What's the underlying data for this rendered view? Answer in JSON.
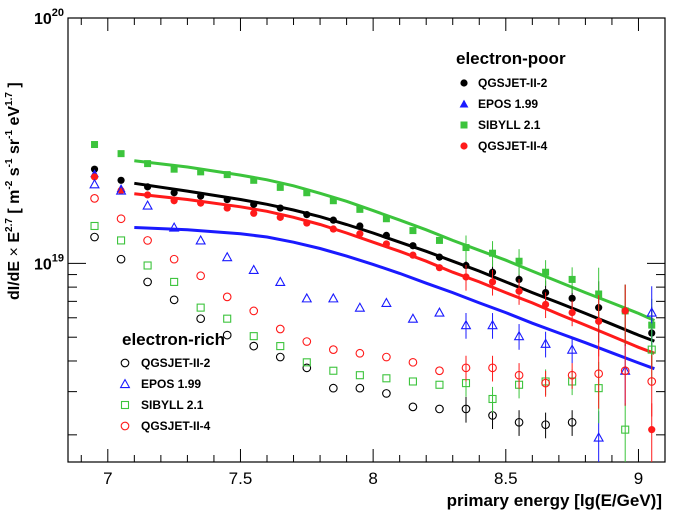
{
  "chart_data": {
    "type": "scatter",
    "xlabel": "primary energy [lg(E/GeV)]",
    "ylabel": "dI/dE × E^2.7 [ m^-2 s^-1 sr^-1 eV^1.7 ]",
    "xlim": [
      6.85,
      9.1
    ],
    "ylim": [
      1.55e+18,
      1e+20
    ],
    "yscale": "log",
    "grid": false,
    "x_ticks": [
      7,
      7.5,
      8,
      8.5,
      9
    ],
    "x_tick_labels": [
      "7",
      "7.5",
      "8",
      "8.5",
      "9"
    ],
    "y_ticks": [
      1e+19,
      1e+20
    ],
    "colors": {
      "QGSJET-II-2": "#000000",
      "EPOS 1.99": "#1a1aff",
      "SIBYLL 2.1": "#3cc43c",
      "QGSJET-II-4": "#ff1a1a"
    },
    "legends": [
      {
        "title": "electron-poor",
        "placement": "top-right",
        "marker": "filled",
        "entries": [
          "QGSJET-II-2",
          "EPOS 1.99",
          "SIBYLL 2.1",
          "QGSJET-II-4"
        ]
      },
      {
        "title": "electron-rich",
        "placement": "bottom-left",
        "marker": "open",
        "entries": [
          "QGSJET-II-2",
          "EPOS 1.99",
          "SIBYLL 2.1",
          "QGSJET-II-4"
        ]
      }
    ],
    "series": [
      {
        "name": "QGSJET-II-2",
        "group": "electron-poor",
        "marker": "circle-filled",
        "color": "#000000",
        "points": [
          [
            6.95,
            2.42e+19
          ],
          [
            7.05,
            2.18e+19
          ],
          [
            7.15,
            2.05e+19
          ],
          [
            7.25,
            1.94e+19
          ],
          [
            7.35,
            1.88e+19
          ],
          [
            7.45,
            1.82e+19
          ],
          [
            7.55,
            1.74e+19
          ],
          [
            7.65,
            1.68e+19
          ],
          [
            7.75,
            1.58e+19
          ],
          [
            7.85,
            1.5e+19
          ],
          [
            7.95,
            1.42e+19
          ],
          [
            8.05,
            1.3e+19
          ],
          [
            8.15,
            1.18e+19
          ],
          [
            8.25,
            1.06e+19
          ],
          [
            8.35,
            9.8e+18
          ],
          [
            8.45,
            9.2e+18
          ],
          [
            8.55,
            8.6e+18
          ],
          [
            8.65,
            7.6e+18
          ],
          [
            8.75,
            7.2e+18
          ],
          [
            8.85,
            6.6e+18
          ],
          [
            8.95,
            6.4e+18
          ],
          [
            9.05,
            5.2e+18
          ]
        ]
      },
      {
        "name": "EPOS 1.99",
        "group": "electron-poor",
        "marker": "triangle-filled",
        "color": "#1a1aff",
        "points": [
          [
            6.95,
            2.32e+19
          ],
          [
            7.05,
            2.02e+19
          ]
        ]
      },
      {
        "name": "SIBYLL 2.1",
        "group": "electron-poor",
        "marker": "square-filled",
        "color": "#3cc43c",
        "points": [
          [
            6.95,
            3.05e+19
          ],
          [
            7.05,
            2.8e+19
          ],
          [
            7.15,
            2.55e+19
          ],
          [
            7.25,
            2.42e+19
          ],
          [
            7.35,
            2.36e+19
          ],
          [
            7.45,
            2.3e+19
          ],
          [
            7.55,
            2.18e+19
          ],
          [
            7.65,
            2.04e+19
          ],
          [
            7.75,
            1.94e+19
          ],
          [
            7.85,
            1.8e+19
          ],
          [
            7.95,
            1.66e+19
          ],
          [
            8.05,
            1.52e+19
          ],
          [
            8.15,
            1.36e+19
          ],
          [
            8.25,
            1.24e+19
          ],
          [
            8.35,
            1.16e+19
          ],
          [
            8.45,
            1.1e+19
          ],
          [
            8.55,
            1.02e+19
          ],
          [
            8.65,
            9.2e+18
          ],
          [
            8.75,
            8.6e+18
          ],
          [
            8.85,
            7.5e+18
          ],
          [
            8.95,
            6.4e+18
          ],
          [
            9.05,
            5.6e+18
          ]
        ]
      },
      {
        "name": "QGSJET-II-4",
        "group": "electron-poor",
        "marker": "circle-filled",
        "color": "#ff1a1a",
        "points": [
          [
            6.95,
            2.25e+19
          ],
          [
            7.05,
            1.98e+19
          ],
          [
            7.15,
            1.9e+19
          ],
          [
            7.25,
            1.8e+19
          ],
          [
            7.35,
            1.76e+19
          ],
          [
            7.45,
            1.68e+19
          ],
          [
            7.55,
            1.6e+19
          ],
          [
            7.65,
            1.54e+19
          ],
          [
            7.75,
            1.46e+19
          ],
          [
            7.85,
            1.38e+19
          ],
          [
            7.95,
            1.32e+19
          ],
          [
            8.05,
            1.2e+19
          ],
          [
            8.15,
            1.08e+19
          ],
          [
            8.25,
            9.6e+18
          ],
          [
            8.35,
            8.8e+18
          ],
          [
            8.45,
            8.4e+18
          ],
          [
            8.55,
            7.7e+18
          ],
          [
            8.65,
            6.8e+18
          ],
          [
            8.75,
            6.3e+18
          ],
          [
            8.85,
            5.8e+18
          ],
          [
            8.95,
            6.4e+18
          ],
          [
            9.05,
            2.1e+18
          ]
        ]
      },
      {
        "name": "QGSJET-II-2",
        "group": "electron-rich",
        "marker": "circle-open",
        "color": "#000000",
        "points": [
          [
            6.95,
            1.28e+19
          ],
          [
            7.05,
            1.04e+19
          ],
          [
            7.15,
            8.4e+18
          ],
          [
            7.25,
            7.1e+18
          ],
          [
            7.35,
            5.95e+18
          ],
          [
            7.45,
            5.1e+18
          ],
          [
            7.55,
            4.6e+18
          ],
          [
            7.65,
            4.15e+18
          ],
          [
            7.75,
            3.75e+18
          ],
          [
            7.85,
            3.1e+18
          ],
          [
            7.95,
            3.1e+18
          ],
          [
            8.05,
            2.95e+18
          ],
          [
            8.15,
            2.6e+18
          ],
          [
            8.25,
            2.55e+18
          ],
          [
            8.35,
            2.55e+18
          ],
          [
            8.45,
            2.4e+18
          ],
          [
            8.55,
            2.25e+18
          ],
          [
            8.65,
            2.2e+18
          ],
          [
            8.75,
            2.25e+18
          ]
        ]
      },
      {
        "name": "EPOS 1.99",
        "group": "electron-rich",
        "marker": "triangle-open",
        "color": "#1a1aff",
        "points": [
          [
            6.95,
            2.1e+19
          ],
          [
            7.05,
            1.98e+19
          ],
          [
            7.15,
            1.72e+19
          ],
          [
            7.25,
            1.4e+19
          ],
          [
            7.35,
            1.24e+19
          ],
          [
            7.45,
            1.06e+19
          ],
          [
            7.55,
            9.4e+18
          ],
          [
            7.65,
            8.4e+18
          ],
          [
            7.75,
            7.2e+18
          ],
          [
            7.85,
            7.2e+18
          ],
          [
            7.95,
            6.6e+18
          ],
          [
            8.05,
            6.9e+18
          ],
          [
            8.15,
            5.95e+18
          ],
          [
            8.25,
            6.3e+18
          ],
          [
            8.35,
            5.6e+18
          ],
          [
            8.45,
            5.6e+18
          ],
          [
            8.55,
            5.05e+18
          ],
          [
            8.65,
            4.7e+18
          ],
          [
            8.75,
            4.45e+18
          ],
          [
            8.85,
            1.95e+18
          ],
          [
            8.95,
            3.65e+18
          ],
          [
            9.05,
            6.3e+18
          ]
        ]
      },
      {
        "name": "SIBYLL 2.1",
        "group": "electron-rich",
        "marker": "square-open",
        "color": "#3cc43c",
        "points": [
          [
            6.95,
            1.42e+19
          ],
          [
            7.05,
            1.24e+19
          ],
          [
            7.15,
            9.8e+18
          ],
          [
            7.25,
            8.4e+18
          ],
          [
            7.35,
            6.6e+18
          ],
          [
            7.45,
            5.95e+18
          ],
          [
            7.55,
            5.05e+18
          ],
          [
            7.65,
            4.6e+18
          ],
          [
            7.75,
            3.95e+18
          ],
          [
            7.85,
            3.65e+18
          ],
          [
            7.95,
            3.5e+18
          ],
          [
            8.05,
            3.4e+18
          ],
          [
            8.15,
            3.3e+18
          ],
          [
            8.25,
            3.2e+18
          ],
          [
            8.35,
            3.25e+18
          ],
          [
            8.45,
            2.8e+18
          ],
          [
            8.55,
            3.2e+18
          ],
          [
            8.65,
            3.3e+18
          ],
          [
            8.75,
            3.3e+18
          ],
          [
            8.85,
            3.1e+18
          ],
          [
            8.95,
            2.1e+18
          ],
          [
            9.05,
            4.45e+18
          ]
        ]
      },
      {
        "name": "QGSJET-II-4",
        "group": "electron-rich",
        "marker": "circle-open",
        "color": "#ff1a1a",
        "points": [
          [
            6.95,
            1.84e+19
          ],
          [
            7.05,
            1.52e+19
          ],
          [
            7.15,
            1.24e+19
          ],
          [
            7.25,
            1.04e+19
          ],
          [
            7.35,
            8.9e+18
          ],
          [
            7.45,
            7.3e+18
          ],
          [
            7.55,
            6.4e+18
          ],
          [
            7.65,
            5.4e+18
          ],
          [
            7.75,
            4.8e+18
          ],
          [
            7.85,
            4.45e+18
          ],
          [
            7.95,
            4.3e+18
          ],
          [
            8.05,
            4.15e+18
          ],
          [
            8.15,
            3.95e+18
          ],
          [
            8.25,
            3.65e+18
          ],
          [
            8.35,
            3.75e+18
          ],
          [
            8.45,
            3.75e+18
          ],
          [
            8.55,
            3.5e+18
          ],
          [
            8.65,
            3.25e+18
          ],
          [
            8.75,
            3.5e+18
          ],
          [
            8.85,
            3.55e+18
          ],
          [
            8.95,
            3.65e+18
          ],
          [
            9.05,
            3.3e+18
          ]
        ]
      }
    ],
    "fits": [
      {
        "name": "QGSJET-II-2",
        "color": "#000000",
        "x": [
          7.1,
          7.3,
          7.5,
          7.6,
          7.7,
          7.8,
          7.9,
          8.0,
          8.1,
          8.2,
          8.3,
          8.4,
          8.5,
          8.6,
          8.7,
          8.8,
          8.9,
          9.0,
          9.06
        ],
        "y": [
          2.12e+19,
          1.97e+19,
          1.82e+19,
          1.74e+19,
          1.65e+19,
          1.55e+19,
          1.44e+19,
          1.33e+19,
          1.22e+19,
          1.12e+19,
          1.02e+19,
          9.3e+18,
          8.4e+18,
          7.6e+18,
          6.9e+18,
          6.25e+18,
          5.65e+18,
          5.1e+18,
          4.82e+18
        ]
      },
      {
        "name": "EPOS 1.99",
        "color": "#1a1aff",
        "x": [
          7.1,
          7.3,
          7.5,
          7.6,
          7.7,
          7.8,
          7.9,
          8.0,
          8.1,
          8.2,
          8.3,
          8.4,
          8.5,
          8.6,
          8.7,
          8.8,
          8.9,
          9.0,
          9.06
        ],
        "y": [
          1.4e+19,
          1.37e+19,
          1.32e+19,
          1.28e+19,
          1.22e+19,
          1.15e+19,
          1.07e+19,
          9.9e+18,
          9.1e+18,
          8.3e+18,
          7.6e+18,
          6.9e+18,
          6.3e+18,
          5.7e+18,
          5.2e+18,
          4.75e+18,
          4.32e+18,
          3.93e+18,
          3.72e+18
        ]
      },
      {
        "name": "SIBYLL 2.1",
        "color": "#3cc43c",
        "x": [
          7.1,
          7.3,
          7.5,
          7.6,
          7.7,
          7.8,
          7.9,
          8.0,
          8.1,
          8.2,
          8.3,
          8.4,
          8.5,
          8.6,
          8.7,
          8.8,
          8.9,
          9.0,
          9.06
        ],
        "y": [
          2.62e+19,
          2.47e+19,
          2.29e+19,
          2.19e+19,
          2.07e+19,
          1.93e+19,
          1.79e+19,
          1.64e+19,
          1.5e+19,
          1.37e+19,
          1.24e+19,
          1.13e+19,
          1.03e+19,
          9.3e+18,
          8.4e+18,
          7.6e+18,
          6.9e+18,
          6.25e+18,
          5.85e+18
        ]
      },
      {
        "name": "QGSJET-II-4",
        "color": "#ff1a1a",
        "x": [
          7.1,
          7.3,
          7.5,
          7.6,
          7.7,
          7.8,
          7.9,
          8.0,
          8.1,
          8.2,
          8.3,
          8.4,
          8.5,
          8.6,
          8.7,
          8.8,
          8.9,
          9.0,
          9.06
        ],
        "y": [
          1.92e+19,
          1.82e+19,
          1.7e+19,
          1.63e+19,
          1.54e+19,
          1.44e+19,
          1.33e+19,
          1.22e+19,
          1.12e+19,
          1.02e+19,
          9.2e+18,
          8.4e+18,
          7.6e+18,
          6.9e+18,
          6.2e+18,
          5.6e+18,
          5.05e+18,
          4.55e+18,
          4.3e+18
        ]
      }
    ]
  }
}
